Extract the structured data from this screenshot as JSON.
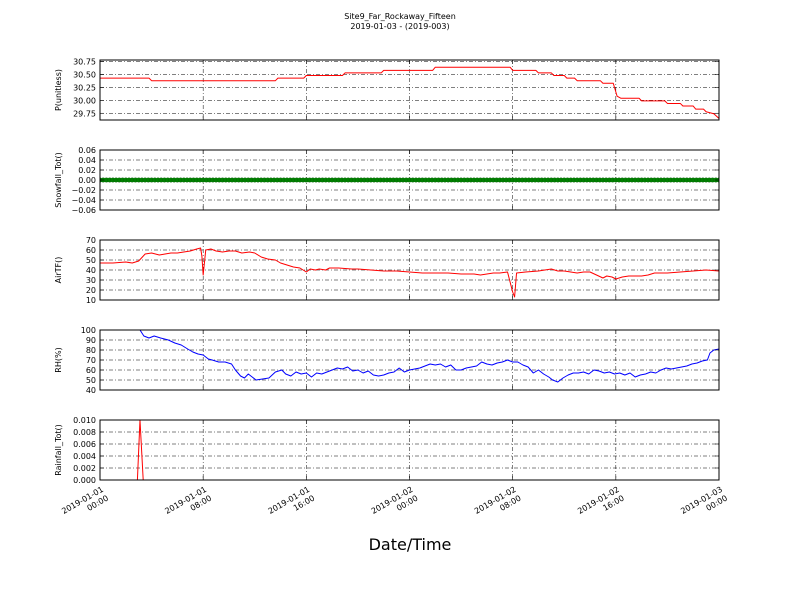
{
  "chart_data": {
    "type": "line",
    "title": "Site9_Far_Rockaway_Fifteen",
    "subtitle": "2019-01-03 - (2019-003)",
    "xlabel": "Date/Time",
    "x_ticks": [
      {
        "line1": "2019-01-01",
        "line2": "00:00",
        "hour": 0
      },
      {
        "line1": "2019-01-01",
        "line2": "08:00",
        "hour": 8
      },
      {
        "line1": "2019-01-01",
        "line2": "16:00",
        "hour": 16
      },
      {
        "line1": "2019-01-02",
        "line2": "00:00",
        "hour": 24
      },
      {
        "line1": "2019-01-02",
        "line2": "08:00",
        "hour": 32
      },
      {
        "line1": "2019-01-02",
        "line2": "16:00",
        "hour": 40
      },
      {
        "line1": "2019-01-03",
        "line2": "00:00",
        "hour": 48
      }
    ],
    "x_range_hours": [
      0,
      48
    ],
    "grid": true,
    "panels": [
      {
        "ylabel": "P(unitless)",
        "ylim": [
          29.62,
          30.78
        ],
        "yticks": [
          "29.75",
          "30.00",
          "30.25",
          "30.50",
          "30.75"
        ],
        "ytick_values": [
          29.75,
          30.0,
          30.25,
          30.5,
          30.75
        ],
        "color": "#ff0000",
        "style": "line",
        "step": true,
        "series": [
          [
            0,
            30.43
          ],
          [
            3.8,
            30.43
          ],
          [
            4,
            30.38
          ],
          [
            13.6,
            30.38
          ],
          [
            13.8,
            30.43
          ],
          [
            15.8,
            30.43
          ],
          [
            16,
            30.48
          ],
          [
            18.8,
            30.48
          ],
          [
            19,
            30.53
          ],
          [
            21.8,
            30.53
          ],
          [
            22,
            30.58
          ],
          [
            25.8,
            30.58
          ],
          [
            26,
            30.64
          ],
          [
            31.8,
            30.64
          ],
          [
            32,
            30.58
          ],
          [
            33.8,
            30.58
          ],
          [
            34,
            30.53
          ],
          [
            35,
            30.53
          ],
          [
            35.2,
            30.48
          ],
          [
            36,
            30.48
          ],
          [
            36.2,
            30.43
          ],
          [
            36.8,
            30.43
          ],
          [
            37,
            30.38
          ],
          [
            38.8,
            30.38
          ],
          [
            39,
            30.33
          ],
          [
            39.8,
            30.33
          ],
          [
            40.1,
            30.08
          ],
          [
            40.4,
            30.04
          ],
          [
            41.8,
            30.04
          ],
          [
            42,
            29.99
          ],
          [
            43.8,
            29.99
          ],
          [
            44,
            29.94
          ],
          [
            45,
            29.94
          ],
          [
            45.2,
            29.89
          ],
          [
            46,
            29.89
          ],
          [
            46.2,
            29.83
          ],
          [
            46.8,
            29.83
          ],
          [
            47,
            29.78
          ],
          [
            47.6,
            29.74
          ],
          [
            48,
            29.65
          ]
        ]
      },
      {
        "ylabel": "Snowfall_Tot()",
        "ylim": [
          -0.06,
          0.06
        ],
        "yticks": [
          "−0.06",
          "−0.04",
          "−0.02",
          "0.00",
          "0.02",
          "0.04",
          "0.06"
        ],
        "ytick_values": [
          -0.06,
          -0.04,
          -0.02,
          0.0,
          0.02,
          0.04,
          0.06
        ],
        "color": "#008000",
        "style": "markers",
        "constant_value": 0.0,
        "marker_interval_hours": 0.25
      },
      {
        "ylabel": "AirTF()",
        "ylim": [
          10,
          70
        ],
        "yticks": [
          "10",
          "20",
          "30",
          "40",
          "50",
          "60",
          "70"
        ],
        "ytick_values": [
          10,
          20,
          30,
          40,
          50,
          60,
          70
        ],
        "color": "#ff0000",
        "style": "line",
        "series": [
          [
            0,
            47
          ],
          [
            1,
            47
          ],
          [
            2,
            48
          ],
          [
            2.5,
            47
          ],
          [
            3,
            49
          ],
          [
            3.5,
            56
          ],
          [
            4,
            57
          ],
          [
            4.6,
            55
          ],
          [
            5.5,
            57
          ],
          [
            6,
            57
          ],
          [
            6.5,
            58
          ],
          [
            7,
            59
          ],
          [
            7.5,
            61
          ],
          [
            7.8,
            62
          ],
          [
            7.9,
            54
          ],
          [
            8.0,
            35
          ],
          [
            8.2,
            60
          ],
          [
            8.6,
            61
          ],
          [
            9,
            59
          ],
          [
            9.5,
            58
          ],
          [
            10,
            59
          ],
          [
            10.5,
            59
          ],
          [
            11,
            57
          ],
          [
            11.6,
            58
          ],
          [
            12,
            57
          ],
          [
            12.5,
            53
          ],
          [
            13,
            51
          ],
          [
            13.6,
            50
          ],
          [
            14,
            47
          ],
          [
            14.5,
            45
          ],
          [
            15,
            43
          ],
          [
            15.5,
            42
          ],
          [
            16,
            38
          ],
          [
            16.3,
            41
          ],
          [
            16.7,
            40
          ],
          [
            17,
            41
          ],
          [
            17.5,
            40
          ],
          [
            17.8,
            42
          ],
          [
            18.5,
            42
          ],
          [
            19.5,
            41
          ],
          [
            20,
            41
          ],
          [
            21,
            40
          ],
          [
            22,
            39
          ],
          [
            23,
            39
          ],
          [
            24,
            38
          ],
          [
            25,
            37
          ],
          [
            26,
            37
          ],
          [
            27,
            37
          ],
          [
            28,
            36
          ],
          [
            29,
            36
          ],
          [
            29.5,
            35
          ],
          [
            30,
            36
          ],
          [
            30.5,
            37
          ],
          [
            31,
            37
          ],
          [
            31.6,
            38
          ],
          [
            32.0,
            18
          ],
          [
            32.15,
            13
          ],
          [
            32.3,
            37
          ],
          [
            33,
            38
          ],
          [
            34,
            39
          ],
          [
            34.5,
            40
          ],
          [
            35,
            41
          ],
          [
            35.5,
            39
          ],
          [
            36,
            39
          ],
          [
            36.5,
            38
          ],
          [
            37,
            37
          ],
          [
            37.5,
            38
          ],
          [
            38,
            38
          ],
          [
            38.5,
            35
          ],
          [
            39,
            32
          ],
          [
            39.3,
            34
          ],
          [
            39.7,
            33
          ],
          [
            40,
            31
          ],
          [
            40.5,
            33
          ],
          [
            41,
            34
          ],
          [
            42,
            34
          ],
          [
            42.5,
            35
          ],
          [
            43,
            37
          ],
          [
            44,
            37
          ],
          [
            45,
            38
          ],
          [
            46,
            39
          ],
          [
            47,
            40
          ],
          [
            48,
            39
          ]
        ]
      },
      {
        "ylabel": "RH(%)",
        "ylim": [
          40,
          100
        ],
        "yticks": [
          "40",
          "50",
          "60",
          "70",
          "80",
          "90",
          "100"
        ],
        "ytick_values": [
          40,
          50,
          60,
          70,
          80,
          90,
          100
        ],
        "color": "#0000ff",
        "style": "line",
        "series": [
          [
            3.1,
            100
          ],
          [
            3.4,
            94
          ],
          [
            3.8,
            92
          ],
          [
            4.2,
            94
          ],
          [
            4.7,
            92
          ],
          [
            5.3,
            90
          ],
          [
            5.8,
            87
          ],
          [
            6.3,
            85
          ],
          [
            6.8,
            81
          ],
          [
            7.2,
            78
          ],
          [
            7.6,
            76
          ],
          [
            8.0,
            75
          ],
          [
            8.4,
            71
          ],
          [
            8.7,
            70
          ],
          [
            9.2,
            68
          ],
          [
            9.7,
            68
          ],
          [
            10.2,
            66
          ],
          [
            10.5,
            60
          ],
          [
            10.9,
            54
          ],
          [
            11.2,
            52
          ],
          [
            11.5,
            56
          ],
          [
            11.8,
            53
          ],
          [
            12.1,
            50
          ],
          [
            12.6,
            51
          ],
          [
            13.1,
            52
          ],
          [
            13.6,
            58
          ],
          [
            14.1,
            60
          ],
          [
            14.4,
            56
          ],
          [
            14.8,
            54
          ],
          [
            15.2,
            58
          ],
          [
            15.6,
            56
          ],
          [
            16,
            57
          ],
          [
            16.4,
            53
          ],
          [
            16.8,
            57
          ],
          [
            17.2,
            56
          ],
          [
            17.6,
            58
          ],
          [
            18,
            60
          ],
          [
            18.4,
            62
          ],
          [
            18.8,
            61
          ],
          [
            19.2,
            63
          ],
          [
            19.6,
            59
          ],
          [
            20,
            60
          ],
          [
            20.4,
            57
          ],
          [
            20.8,
            59
          ],
          [
            21.2,
            55
          ],
          [
            21.6,
            54
          ],
          [
            22,
            55
          ],
          [
            22.4,
            57
          ],
          [
            22.8,
            58
          ],
          [
            23.2,
            62
          ],
          [
            23.6,
            58
          ],
          [
            24,
            60
          ],
          [
            24.4,
            61
          ],
          [
            24.8,
            62
          ],
          [
            25.2,
            64
          ],
          [
            25.6,
            66
          ],
          [
            26,
            65
          ],
          [
            26.4,
            66
          ],
          [
            26.8,
            63
          ],
          [
            27.2,
            65
          ],
          [
            27.6,
            60
          ],
          [
            28,
            60
          ],
          [
            28.4,
            62
          ],
          [
            28.8,
            63
          ],
          [
            29.2,
            64
          ],
          [
            29.6,
            68
          ],
          [
            30,
            66
          ],
          [
            30.4,
            65
          ],
          [
            30.8,
            67
          ],
          [
            31.2,
            68
          ],
          [
            31.6,
            70
          ],
          [
            32,
            68
          ],
          [
            32.4,
            68
          ],
          [
            32.8,
            65
          ],
          [
            33.2,
            63
          ],
          [
            33.6,
            57
          ],
          [
            34,
            60
          ],
          [
            34.4,
            56
          ],
          [
            34.8,
            53
          ],
          [
            35.1,
            50
          ],
          [
            35.5,
            48
          ],
          [
            35.9,
            52
          ],
          [
            36.3,
            55
          ],
          [
            36.7,
            57
          ],
          [
            37.1,
            57
          ],
          [
            37.5,
            58
          ],
          [
            37.9,
            56
          ],
          [
            38.3,
            60
          ],
          [
            38.7,
            59
          ],
          [
            39.1,
            57
          ],
          [
            39.5,
            58
          ],
          [
            39.9,
            56
          ],
          [
            40.3,
            57
          ],
          [
            40.7,
            55
          ],
          [
            41.1,
            57
          ],
          [
            41.5,
            53
          ],
          [
            41.9,
            55
          ],
          [
            42.3,
            56
          ],
          [
            42.7,
            58
          ],
          [
            43.1,
            57
          ],
          [
            43.5,
            60
          ],
          [
            43.9,
            62
          ],
          [
            44.3,
            61
          ],
          [
            44.7,
            62
          ],
          [
            45.1,
            63
          ],
          [
            45.5,
            64
          ],
          [
            45.9,
            66
          ],
          [
            46.3,
            67
          ],
          [
            46.7,
            69
          ],
          [
            47.1,
            70
          ],
          [
            47.3,
            77
          ],
          [
            47.6,
            80
          ],
          [
            48,
            81
          ]
        ]
      },
      {
        "ylabel": "Rainfall_Tot()",
        "ylim": [
          0,
          0.01
        ],
        "yticks": [
          "0.000",
          "0.002",
          "0.004",
          "0.006",
          "0.008",
          "0.010"
        ],
        "ytick_values": [
          0,
          0.002,
          0.004,
          0.006,
          0.008,
          0.01
        ],
        "color": "#ff0000",
        "style": "line",
        "series": [
          [
            0,
            0
          ],
          [
            2.9,
            0
          ],
          [
            3.1,
            0.01
          ],
          [
            3.35,
            0
          ],
          [
            48,
            0
          ]
        ]
      }
    ]
  }
}
